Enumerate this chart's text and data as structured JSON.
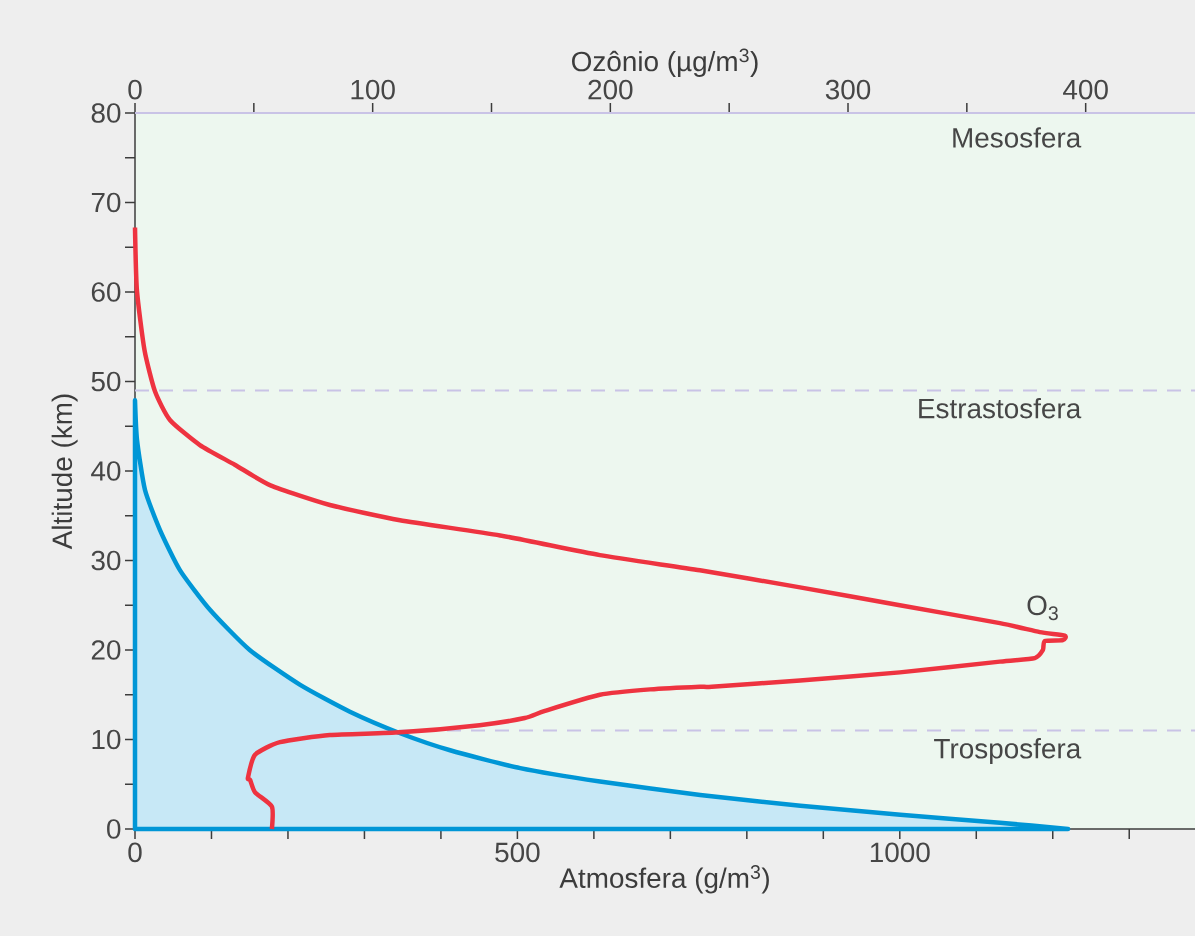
{
  "chart_data": {
    "type": "line",
    "xlabel": "Atmosfera (g/m$^{3}$)",
    "x2label": "Ozônio (µg/m$^{3}$)",
    "ylabel": "Altitude (km)",
    "xlim": [
      0,
      1386
    ],
    "x2lim": [
      0,
      446
    ],
    "ylim": [
      0,
      80
    ],
    "xticks": [
      0,
      {
        "value": 100,
        "label": null
      },
      {
        "value": 200,
        "label": null
      },
      {
        "value": 300,
        "label": null
      },
      {
        "value": 400,
        "label": null
      },
      500,
      {
        "value": 600,
        "label": null
      },
      {
        "value": 700,
        "label": null
      },
      {
        "value": 800,
        "label": null
      },
      {
        "value": 900,
        "label": null
      },
      1000,
      {
        "value": 1100,
        "label": null
      },
      {
        "value": 1200,
        "label": null
      },
      {
        "value": 1300,
        "label": null
      }
    ],
    "x2ticks": [
      0,
      {
        "value": 50,
        "label": null
      },
      100,
      {
        "value": 150,
        "label": null
      },
      200,
      {
        "value": 250,
        "label": null
      },
      300,
      {
        "value": 350,
        "label": null
      },
      400
    ],
    "yticks": [
      0,
      {
        "value": 5,
        "label": null
      },
      10,
      {
        "value": 15,
        "label": null
      },
      20,
      {
        "value": 25,
        "label": null
      },
      30,
      {
        "value": 35,
        "label": null
      },
      40,
      {
        "value": 45,
        "label": null
      },
      50,
      {
        "value": 55,
        "label": null
      },
      60,
      {
        "value": 65,
        "label": null
      },
      70,
      {
        "value": 75,
        "label": null
      },
      80
    ],
    "series": [
      {
        "type": "area",
        "color": "#0096d6",
        "x": [
          0,
          2.6,
          13,
          32.7,
          58.9,
          98,
          150,
          216,
          281,
          346.6,
          412,
          503.6,
          608,
          739,
          870,
          1000.7,
          1131,
          1220
        ],
        "values": [
          47.9,
          43.5,
          37.9,
          33.4,
          28.9,
          24.5,
          20,
          16.1,
          13.1,
          10.7,
          8.8,
          6.8,
          5.3,
          3.8,
          2.6,
          1.6,
          0.7,
          0
        ]
      },
      {
        "type": "line",
        "name": "O$_{3}$",
        "axis": "x2",
        "color": "#ee3340",
        "x": [
          0,
          0.8,
          4,
          8.4,
          14.7,
          27.3,
          42,
          57,
          82,
          111.5,
          153.6,
          195.6,
          237.7,
          279.8,
          321.8,
          363.9,
          380.7,
          391.2,
          390.4,
          382.8,
          382,
          378.6,
          363.9,
          321.8,
          279.8,
          242.7,
          237.7,
          216.7,
          195.6,
          172.5,
          164,
          145,
          111.5,
          82,
          61,
          50.5,
          47.5,
          48.4,
          50.5,
          57.6,
          57.6
        ],
        "values": [
          67.2,
          60.2,
          53.5,
          48.9,
          45.7,
          42.9,
          40.7,
          38.4,
          36.2,
          34.5,
          32.8,
          30.6,
          28.9,
          27,
          25,
          23,
          22,
          21.6,
          21.1,
          21,
          20,
          19.1,
          18.7,
          17.5,
          16.6,
          15.9,
          15.9,
          15.6,
          15,
          13.2,
          12.4,
          11.6,
          10.8,
          10.5,
          9.7,
          8.3,
          5.7,
          5.5,
          4.1,
          2.5,
          0
        ]
      }
    ],
    "annotations": [
      "Mesosfera"
    ],
    "ref_lines": [
      {
        "axis": "y",
        "value": 49,
        "label": "Estrastosfera",
        "color": "#c9c3e6",
        "line_style": "dashed"
      },
      {
        "axis": "y",
        "value": 11,
        "label": "Trosposfera",
        "color": "#c9c3e6",
        "line_style": "dashed"
      }
    ]
  }
}
